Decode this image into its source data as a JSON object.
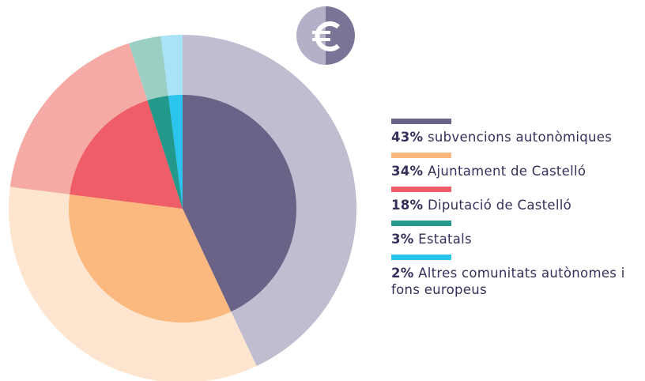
{
  "chart_data": {
    "type": "pie",
    "categories": [
      "subvencions autonòmiques",
      "Ajuntament de Castelló",
      "Diputació de Castelló",
      "Estatals",
      "Altres comunitats autònomes i fons europeus"
    ],
    "values": [
      43,
      34,
      18,
      3,
      2
    ],
    "value_labels": [
      "43%",
      "34%",
      "18%",
      "3%",
      "2%"
    ],
    "colors": [
      "#6a6387",
      "#fbb97f",
      "#ef5e68",
      "#22998a",
      "#2ac4ef"
    ],
    "ring_colors": [
      "#c0bdd0",
      "#fde5cf",
      "#f6aaa6",
      "#9ccfc4",
      "#a8e3f7"
    ]
  }
}
